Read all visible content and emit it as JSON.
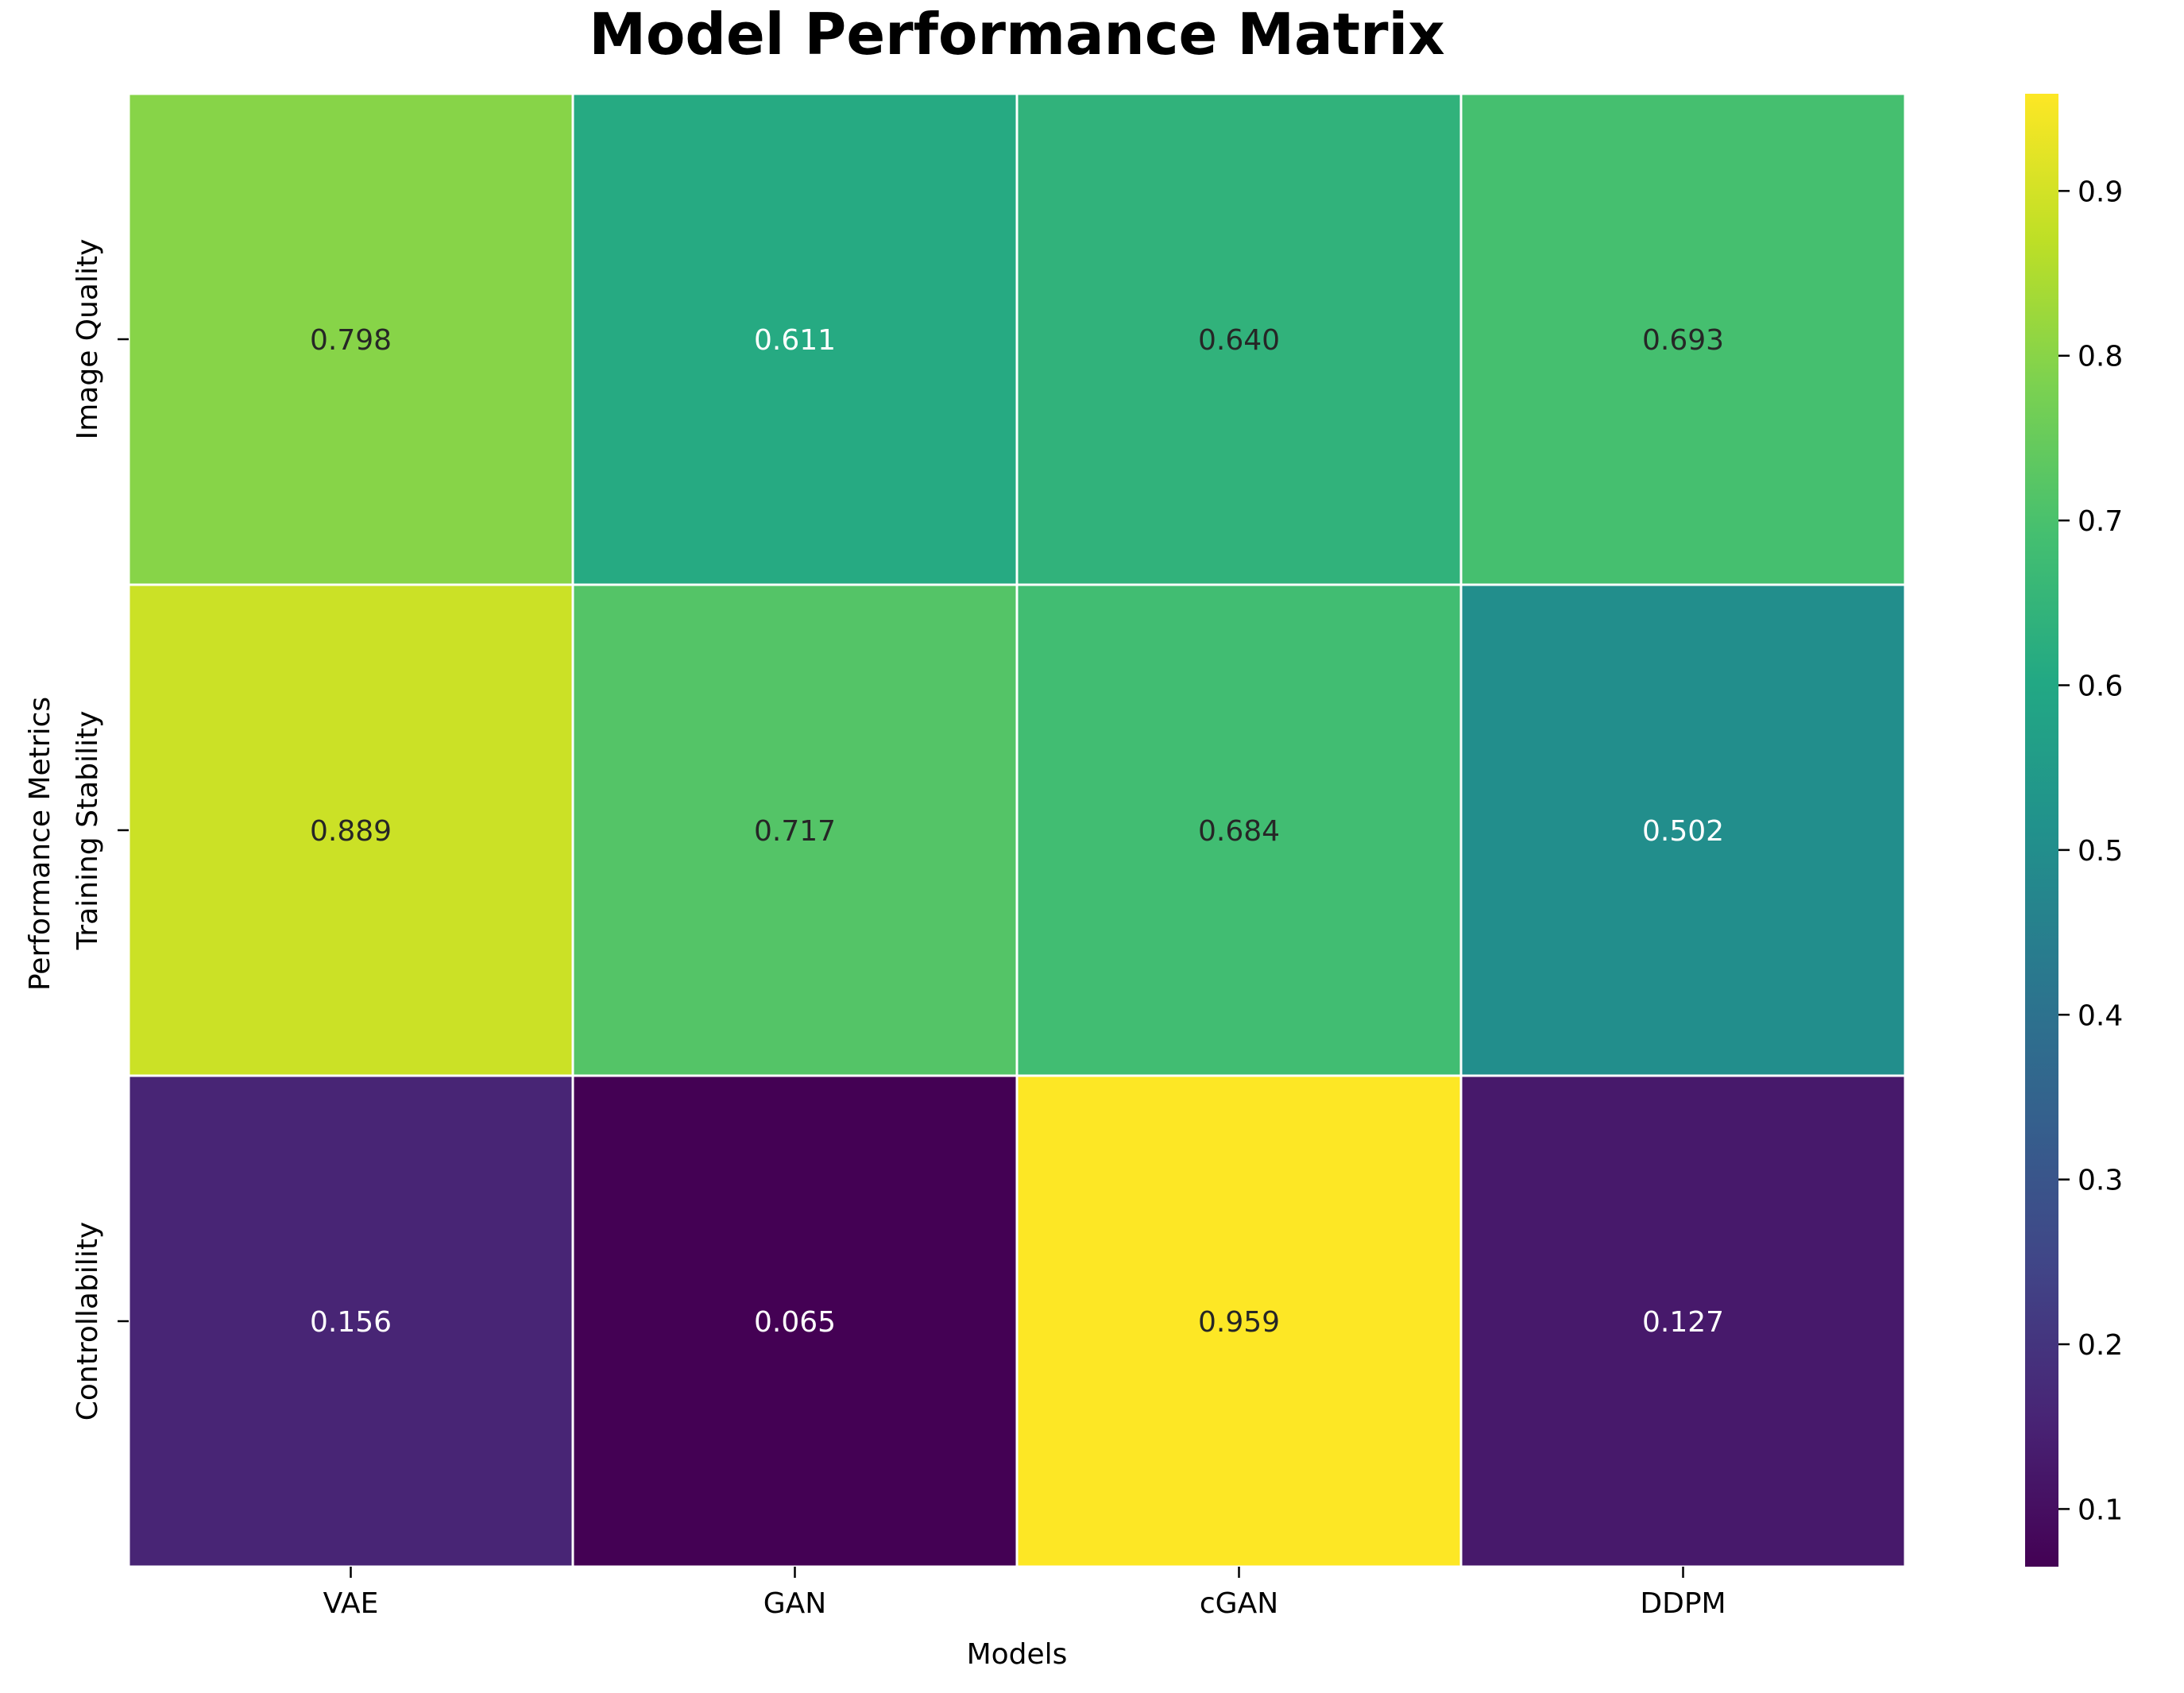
{
  "chart_data": {
    "type": "heatmap",
    "title": "Model Performance Matrix",
    "xlabel": "Models",
    "ylabel": "Performance Metrics",
    "x_categories": [
      "VAE",
      "GAN",
      "cGAN",
      "DDPM"
    ],
    "y_categories": [
      "Image Quality",
      "Training Stability",
      "Controllability"
    ],
    "values": [
      [
        0.798,
        0.611,
        0.64,
        0.693
      ],
      [
        0.889,
        0.717,
        0.684,
        0.502
      ],
      [
        0.156,
        0.065,
        0.959,
        0.127
      ]
    ],
    "cell_labels": [
      [
        "0.798",
        "0.611",
        "0.640",
        "0.693"
      ],
      [
        "0.889",
        "0.717",
        "0.684",
        "0.502"
      ],
      [
        "0.156",
        "0.065",
        "0.959",
        "0.127"
      ]
    ],
    "colormap": "viridis",
    "color_range": [
      0.065,
      0.959
    ],
    "colorbar_ticks": [
      "0.1",
      "0.2",
      "0.3",
      "0.4",
      "0.5",
      "0.6",
      "0.7",
      "0.8",
      "0.9"
    ],
    "cell_border_color": "#ffffff",
    "grid": false,
    "legend": "colorbar-right"
  }
}
